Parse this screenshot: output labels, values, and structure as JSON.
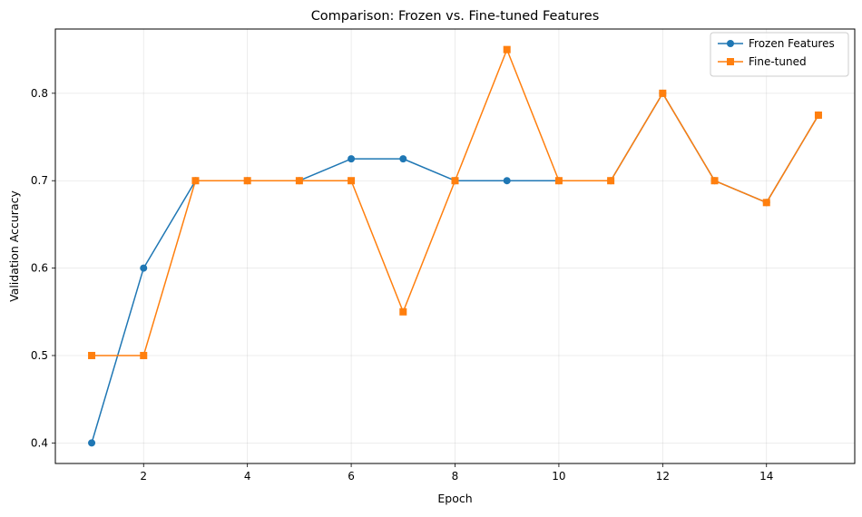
{
  "chart_data": {
    "type": "line",
    "title": "Comparison: Frozen vs. Fine-tuned Features",
    "xlabel": "Epoch",
    "ylabel": "Validation Accuracy",
    "xlim": [
      0.3,
      15.7
    ],
    "ylim": [
      0.3765,
      0.8735
    ],
    "xticks": [
      2,
      4,
      6,
      8,
      10,
      12,
      14
    ],
    "yticks": [
      0.4,
      0.5,
      0.6,
      0.7,
      0.8
    ],
    "xtick_labels": [
      "2",
      "4",
      "6",
      "8",
      "10",
      "12",
      "14"
    ],
    "ytick_labels": [
      "0.4",
      "0.5",
      "0.6",
      "0.7",
      "0.8"
    ],
    "grid": true,
    "legend_position": "top-right",
    "x": [
      1,
      2,
      3,
      4,
      5,
      6,
      7,
      8,
      9,
      10,
      11,
      12,
      13,
      14,
      15
    ],
    "series": [
      {
        "name": "Frozen Features",
        "color": "#1f77b4",
        "marker": "circle",
        "values": [
          0.4,
          0.6,
          0.7,
          0.7,
          0.7,
          0.725,
          0.725,
          0.7,
          0.7,
          0.7,
          0.7,
          0.8,
          0.7,
          0.675,
          0.775
        ]
      },
      {
        "name": "Fine-tuned",
        "color": "#ff7f0e",
        "marker": "square",
        "values": [
          0.5,
          0.5,
          0.7,
          0.7,
          0.7,
          0.7,
          0.55,
          0.7,
          0.85,
          0.7,
          0.7,
          0.8,
          0.7,
          0.675,
          0.775
        ]
      }
    ]
  }
}
